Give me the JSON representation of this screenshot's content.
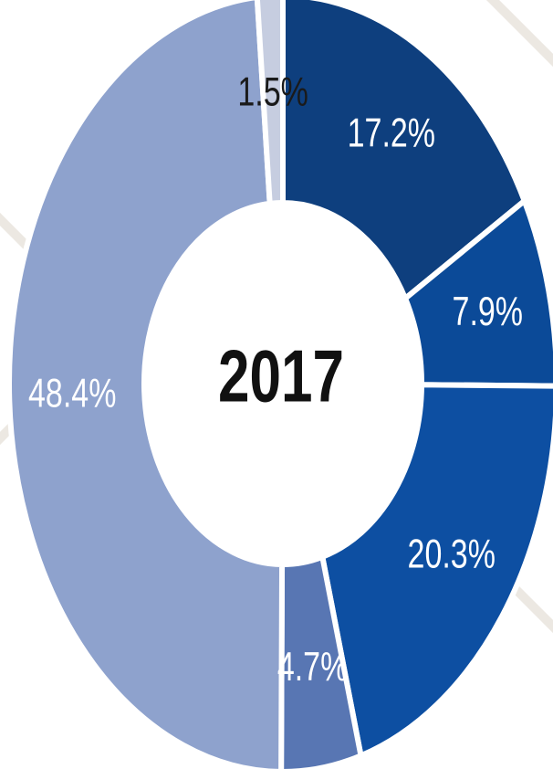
{
  "chart_data": {
    "type": "donut",
    "center_label": "2017",
    "values": [
      17.2,
      7.9,
      20.3,
      4.7,
      48.4,
      1.5
    ],
    "value_labels": [
      "17.2%",
      "7.9%",
      "20.3%",
      "4.7%",
      "48.4%",
      "1.5%"
    ],
    "colors": [
      "#0e3f7e",
      "#0b4a98",
      "#0d4fa2",
      "#5876b3",
      "#8ea2cd",
      "#c6cde0"
    ]
  }
}
